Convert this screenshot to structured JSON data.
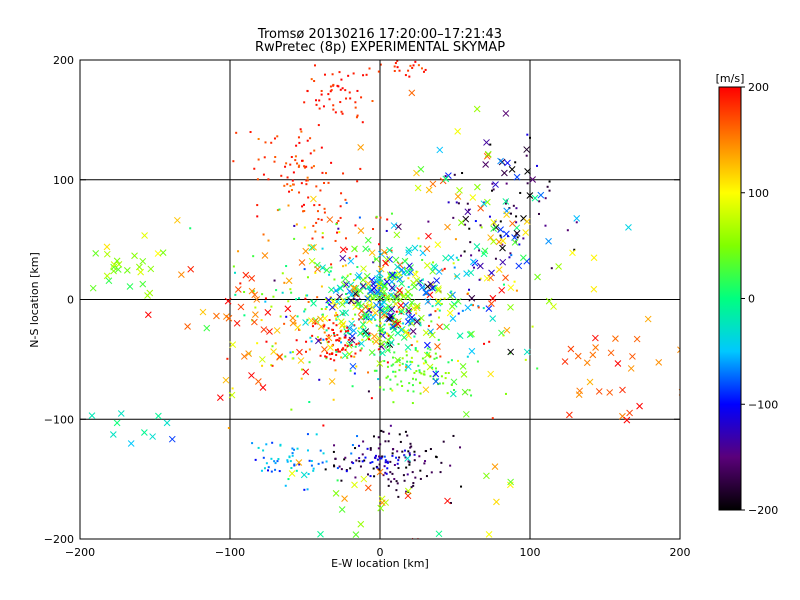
{
  "header": {
    "title_line1": "Tromsø 20130216 17:20:00–17:21:43",
    "title_line2": "RwPretec (8p) EXPERIMENTAL SKYMAP"
  },
  "chart_data": {
    "type": "scatter",
    "title": "Tromsø 20130216 17:20:00–17:21:43",
    "subtitle": "RwPretec (8p) EXPERIMENTAL SKYMAP",
    "xlabel": "E-W location [km]",
    "ylabel": "N-S location [km]",
    "xlim": [
      -200,
      200
    ],
    "ylim": [
      -200,
      200
    ],
    "xticks": [
      -200,
      -100,
      0,
      100,
      200
    ],
    "yticks": [
      -200,
      -100,
      0,
      100,
      200
    ],
    "grid": true,
    "colorbar": {
      "label": "[m/s]",
      "range": [
        -200,
        200
      ],
      "ticks": [
        -200,
        -100,
        0,
        100,
        200
      ],
      "colors": [
        "#000000",
        "#5a007a",
        "#0000ff",
        "#00c8ff",
        "#00ff80",
        "#80ff00",
        "#ffff00",
        "#ff8000",
        "#ff0000"
      ]
    },
    "markers": {
      "dot": "point",
      "cross": "x"
    },
    "clusters": [
      {
        "x": -30,
        "y": 170,
        "sx": 12,
        "sy": 12,
        "v": 190,
        "vs": 20,
        "n": 50,
        "m": "dot"
      },
      {
        "x": 15,
        "y": 195,
        "sx": 15,
        "sy": 5,
        "v": 190,
        "vs": 20,
        "n": 25,
        "m": "dot"
      },
      {
        "x": -55,
        "y": 110,
        "sx": 18,
        "sy": 20,
        "v": 180,
        "vs": 25,
        "n": 80,
        "m": "dot"
      },
      {
        "x": -20,
        "y": 60,
        "sx": 15,
        "sy": 12,
        "v": 185,
        "vs": 25,
        "n": 25,
        "m": "dot"
      },
      {
        "x": -10,
        "y": -10,
        "sx": 40,
        "sy": 35,
        "v": 60,
        "vs": 140,
        "n": 350,
        "m": "dot"
      },
      {
        "x": 0,
        "y": 0,
        "sx": 20,
        "sy": 22,
        "v": 0,
        "vs": 150,
        "n": 280,
        "m": "cross"
      },
      {
        "x": -30,
        "y": -35,
        "sx": 10,
        "sy": 8,
        "v": 195,
        "vs": 10,
        "n": 60,
        "m": "dot"
      },
      {
        "x": 25,
        "y": -60,
        "sx": 15,
        "sy": 10,
        "v": 30,
        "vs": 25,
        "n": 80,
        "m": "dot"
      },
      {
        "x": 10,
        "y": -135,
        "sx": 20,
        "sy": 12,
        "v": -180,
        "vs": 30,
        "n": 110,
        "m": "dot"
      },
      {
        "x": 0,
        "y": -135,
        "sx": 10,
        "sy": 6,
        "v": -110,
        "vs": 20,
        "n": 35,
        "m": "dot"
      },
      {
        "x": -55,
        "y": -135,
        "sx": 18,
        "sy": 12,
        "v": -60,
        "vs": 40,
        "n": 60,
        "m": "dot"
      },
      {
        "x": 80,
        "y": 75,
        "sx": 18,
        "sy": 25,
        "v": -160,
        "vs": 60,
        "n": 70,
        "m": "dot"
      },
      {
        "x": 80,
        "y": 90,
        "sx": 15,
        "sy": 25,
        "v": -120,
        "vs": 80,
        "n": 25,
        "m": "cross"
      },
      {
        "x": -170,
        "y": 25,
        "sx": 15,
        "sy": 12,
        "v": 60,
        "vs": 40,
        "n": 25,
        "m": "cross"
      },
      {
        "x": -160,
        "y": -105,
        "sx": 20,
        "sy": 12,
        "v": -40,
        "vs": 80,
        "n": 10,
        "m": "cross"
      },
      {
        "x": 150,
        "y": -50,
        "sx": 20,
        "sy": 30,
        "v": 170,
        "vs": 40,
        "n": 28,
        "m": "cross"
      },
      {
        "x": -75,
        "y": -20,
        "sx": 30,
        "sy": 35,
        "v": 150,
        "vs": 80,
        "n": 60,
        "m": "cross"
      },
      {
        "x": 60,
        "y": -10,
        "sx": 30,
        "sy": 40,
        "v": 30,
        "vs": 160,
        "n": 60,
        "m": "cross"
      },
      {
        "x": 70,
        "y": 40,
        "sx": 25,
        "sy": 25,
        "v": 20,
        "vs": 160,
        "n": 40,
        "m": "cross"
      },
      {
        "x": 40,
        "y": 110,
        "sx": 25,
        "sy": 25,
        "v": 100,
        "vs": 100,
        "n": 20,
        "m": "cross"
      },
      {
        "x": 20,
        "y": -160,
        "sx": 40,
        "sy": 20,
        "v": 100,
        "vs": 100,
        "n": 30,
        "m": "cross"
      }
    ]
  }
}
